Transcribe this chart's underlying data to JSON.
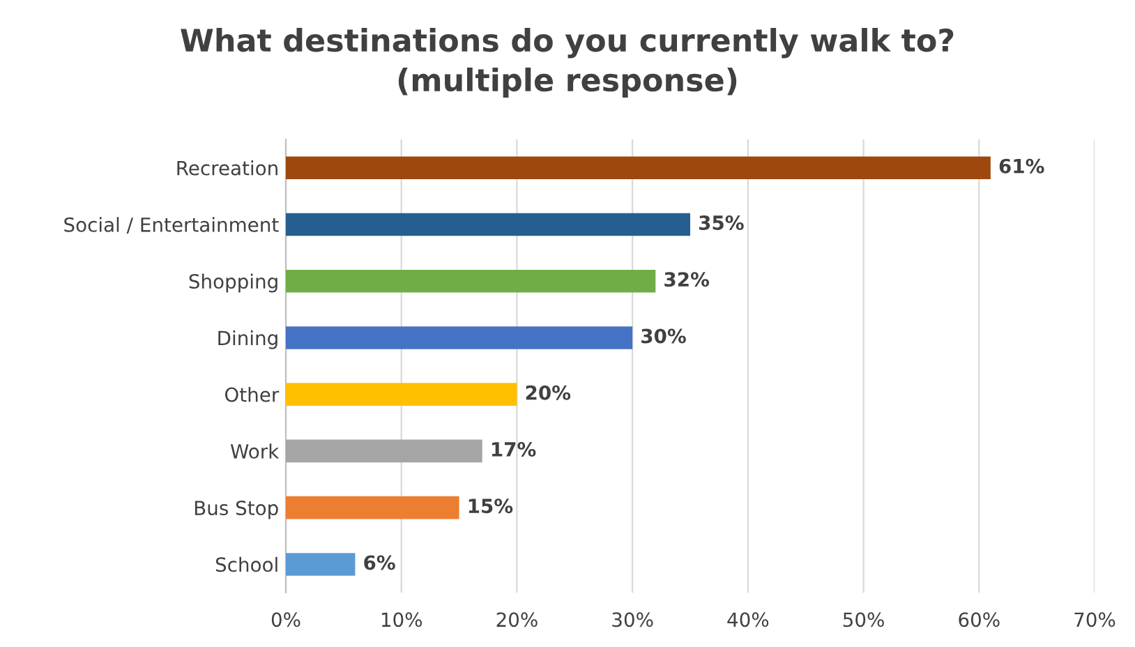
{
  "chart_data": {
    "type": "bar",
    "orientation": "horizontal",
    "title": "What destinations do you currently walk to?\n(multiple response)",
    "categories": [
      "Recreation",
      "Social / Entertainment",
      "Shopping",
      "Dining",
      "Other",
      "Work",
      "Bus Stop",
      "School"
    ],
    "values": [
      61,
      35,
      32,
      30,
      20,
      17,
      15,
      6
    ],
    "colors": [
      "#9e480e",
      "#255e91",
      "#70ad47",
      "#4472c4",
      "#ffc000",
      "#a5a5a5",
      "#ed7d31",
      "#5b9bd5"
    ],
    "value_labels": [
      "61%",
      "35%",
      "32%",
      "30%",
      "20%",
      "17%",
      "15%",
      "6%"
    ],
    "xlim": [
      0,
      70
    ],
    "xticks": [
      {
        "value": 0,
        "label": "0%"
      },
      {
        "value": 10,
        "label": "10%"
      },
      {
        "value": 20,
        "label": "20%"
      },
      {
        "value": 30,
        "label": "30%"
      },
      {
        "value": 40,
        "label": "40%"
      },
      {
        "value": 50,
        "label": "50%"
      },
      {
        "value": 60,
        "label": "60%"
      },
      {
        "value": 70,
        "label": "70%"
      }
    ],
    "grid": "x",
    "legend": false
  }
}
